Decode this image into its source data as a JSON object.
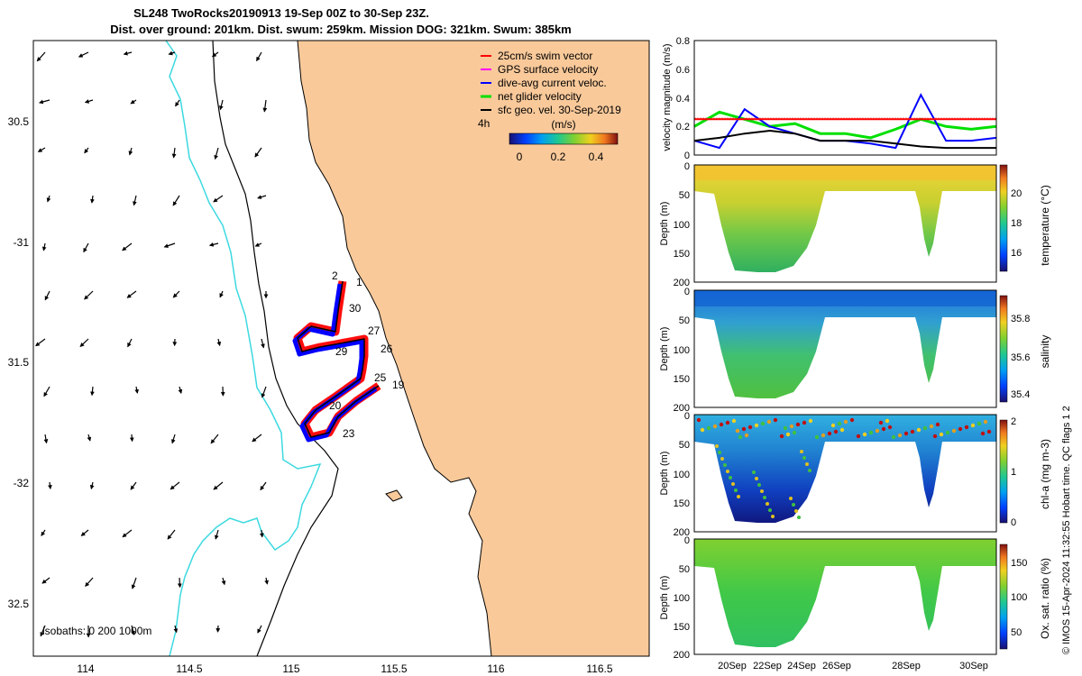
{
  "title": {
    "line1": "SL248 TwoRocks20190913 19-Sep 00Z to 30-Sep 23Z.",
    "line2": "Dist. over ground: 201km. Dist. swum: 259km. Mission DOG: 321km. Swum: 385km"
  },
  "credit": "© IMOS 15-Apr-2024 11:32:55 Hobart time. QC flags 1  2",
  "colors": {
    "land": "#f9c99a",
    "isobath_200": "#3cd9e0",
    "coast": "#000000",
    "swim": "#ff0000",
    "gps": "#ff00ff",
    "dive_avg": "#0000ff",
    "net_glider": "#00e000",
    "sfc_geo": "#000000"
  },
  "map": {
    "legend_items": [
      "25cm/s swim vector",
      "GPS surface velocity",
      "dive-avg current veloc.",
      "net glider velocity",
      "sfc geo. vel. 30-Sep-2019"
    ],
    "time_label": "4h",
    "colorbar": {
      "title": "(m/s)",
      "ticks": [
        "0",
        "0.2",
        "0.4"
      ],
      "range": [
        0,
        0.5
      ]
    },
    "isobaths_label": "isobaths: 0   200  1000m",
    "lon_ticks": [
      "114",
      "114.5",
      "115",
      "115.5",
      "116",
      "116.5"
    ],
    "lat_ticks": [
      "30.5",
      "-31",
      "31.5",
      "-32",
      "32.5"
    ],
    "day_labels": [
      "2",
      "1",
      "30",
      "27",
      "26",
      "25",
      "19",
      "20",
      "23",
      "29"
    ]
  },
  "chart_data": [
    {
      "type": "line",
      "title": "",
      "xlabel": "",
      "ylabel": "velocity magnitude (m/s)",
      "xlim": [
        "2019-09-19",
        "2019-10-01"
      ],
      "ylim": [
        0,
        0.8
      ],
      "yticks": [
        "0",
        "0.2",
        "0.4",
        "0.6",
        "0.8"
      ],
      "series": [
        {
          "color": "#00e000",
          "x": [
            "2019-09-19",
            "2019-09-20",
            "2019-09-21",
            "2019-09-22",
            "2019-09-23",
            "2019-09-24",
            "2019-09-25",
            "2019-09-26",
            "2019-09-27",
            "2019-09-28",
            "2019-09-29",
            "2019-09-30",
            "2019-10-01"
          ],
          "values": [
            0.2,
            0.3,
            0.25,
            0.2,
            0.22,
            0.15,
            0.15,
            0.12,
            0.18,
            0.25,
            0.2,
            0.18,
            0.2
          ]
        },
        {
          "color": "#0000ff",
          "x": [
            "2019-09-19",
            "2019-09-20",
            "2019-09-21",
            "2019-09-22",
            "2019-09-23",
            "2019-09-24",
            "2019-09-25",
            "2019-09-26",
            "2019-09-27",
            "2019-09-28",
            "2019-09-29",
            "2019-09-30",
            "2019-10-01"
          ],
          "values": [
            0.1,
            0.05,
            0.32,
            0.2,
            0.15,
            0.1,
            0.1,
            0.08,
            0.05,
            0.42,
            0.1,
            0.1,
            0.12
          ]
        },
        {
          "color": "#000000",
          "x": [
            "2019-09-19",
            "2019-09-20",
            "2019-09-21",
            "2019-09-22",
            "2019-09-23",
            "2019-09-24",
            "2019-09-25",
            "2019-09-26",
            "2019-09-27",
            "2019-09-28",
            "2019-09-29",
            "2019-09-30",
            "2019-10-01"
          ],
          "values": [
            0.1,
            0.12,
            0.15,
            0.17,
            0.15,
            0.1,
            0.1,
            0.1,
            0.08,
            0.06,
            0.05,
            0.05,
            0.05
          ]
        },
        {
          "color": "#ff0000",
          "x": [
            "2019-09-19",
            "2019-10-01"
          ],
          "values": [
            0.25,
            0.25
          ]
        }
      ]
    },
    {
      "type": "heatmap",
      "ylabel": "Depth (m)",
      "clabel": "temperature (°C)",
      "ylim": [
        200,
        0
      ],
      "yticks": [
        "0",
        "50",
        "100",
        "150",
        "200"
      ],
      "cticks": [
        "16",
        "18",
        "20"
      ],
      "crange": [
        15,
        21.5
      ]
    },
    {
      "type": "heatmap",
      "ylabel": "Depth (m)",
      "clabel": "salinity",
      "ylim": [
        200,
        0
      ],
      "yticks": [
        "0",
        "50",
        "100",
        "150",
        "200"
      ],
      "cticks": [
        "35.4",
        "35.6",
        "35.8"
      ],
      "crange": [
        35.35,
        35.9
      ]
    },
    {
      "type": "heatmap",
      "ylabel": "Depth (m)",
      "clabel": "chl-a (mg m-3)",
      "ylim": [
        200,
        0
      ],
      "yticks": [
        "0",
        "50",
        "100",
        "150",
        "200"
      ],
      "cticks": [
        "0",
        "1",
        "2"
      ],
      "crange": [
        0,
        2
      ]
    },
    {
      "type": "heatmap",
      "ylabel": "Depth (m)",
      "clabel": "Ox. sat. ratio (%)",
      "ylim": [
        200,
        0
      ],
      "yticks": [
        "0",
        "50",
        "100",
        "150",
        "200"
      ],
      "cticks": [
        "50",
        "100",
        "150"
      ],
      "crange": [
        25,
        175
      ],
      "xticks": [
        "20Sep",
        "22Sep",
        "24Sep",
        "26Sep",
        "28Sep",
        "30Sep"
      ]
    }
  ]
}
